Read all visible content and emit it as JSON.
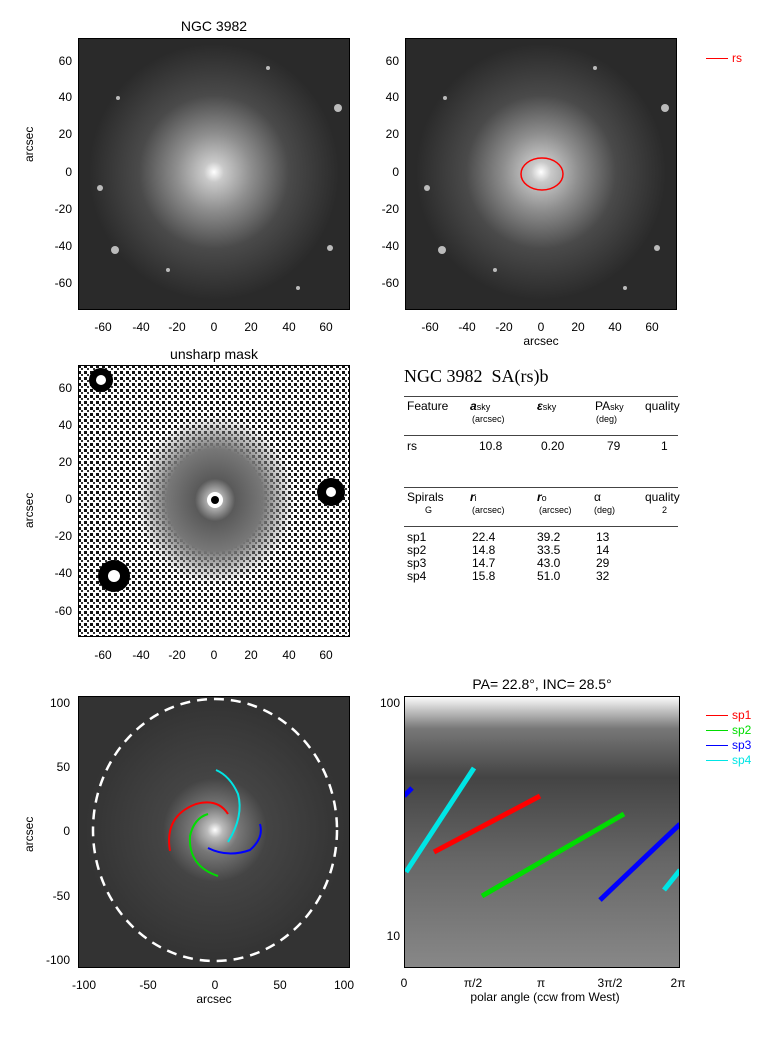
{
  "panel1": {
    "title": "NGC 3982",
    "ylabel": "arcsec",
    "yticks": [
      "60",
      "40",
      "20",
      "0",
      "-20",
      "-40",
      "-60"
    ],
    "xticks": [
      "-60",
      "-40",
      "-20",
      "0",
      "20",
      "40",
      "60"
    ]
  },
  "panel2": {
    "xlabel": "arcsec",
    "yticks": [
      "60",
      "40",
      "20",
      "0",
      "-20",
      "-40",
      "-60"
    ],
    "xticks": [
      "-60",
      "-40",
      "-20",
      "0",
      "20",
      "40",
      "60"
    ],
    "legend": {
      "label": "rs",
      "color": "#ff0000"
    }
  },
  "panel3": {
    "title": "unsharp mask",
    "ylabel": "arcsec",
    "yticks": [
      "60",
      "40",
      "20",
      "0",
      "-20",
      "-40",
      "-60"
    ],
    "xticks": [
      "-60",
      "-40",
      "-20",
      "0",
      "20",
      "40",
      "60"
    ]
  },
  "table": {
    "title": "NGC 3982  SA(rs)b",
    "ring_header": {
      "c1": "Feature",
      "c2": "a",
      "c2sub": "sky",
      "c2unit": "(arcsec)",
      "c3": "ε",
      "c3sub": "sky",
      "c4": "PA",
      "c4sub": "sky",
      "c4unit": "(deg)",
      "c5": "quality"
    },
    "rings": [
      {
        "feature": "rs",
        "a": "10.8",
        "e": "0.20",
        "pa": "79",
        "quality": "1"
      }
    ],
    "spiral_header": {
      "c1": "Spirals",
      "c1b": "G",
      "c2": "r",
      "c2sub": "i",
      "c2unit": "(arcsec)",
      "c3": "r",
      "c3sub": "o",
      "c3unit": "(arcsec)",
      "c4": "α",
      "c4unit": "(deg)",
      "c5": "quality",
      "c5b": "2"
    },
    "spirals": [
      {
        "name": "sp1",
        "ri": "22.4",
        "ro": "39.2",
        "alpha": "13"
      },
      {
        "name": "sp2",
        "ri": "14.8",
        "ro": "33.5",
        "alpha": "14"
      },
      {
        "name": "sp3",
        "ri": "14.7",
        "ro": "43.0",
        "alpha": "29"
      },
      {
        "name": "sp4",
        "ri": "15.8",
        "ro": "51.0",
        "alpha": "32"
      }
    ]
  },
  "panel5": {
    "ylabel": "arcsec",
    "xlabel": "arcsec",
    "yticks": [
      "100",
      "50",
      "0",
      "-50",
      "-100"
    ],
    "xticks": [
      "-100",
      "-50",
      "0",
      "50",
      "100"
    ]
  },
  "panel6": {
    "title": "PA=  22.8°, INC=  28.5°",
    "xlabel": "polar angle (ccw from West)",
    "yticks": [
      "100",
      "10"
    ],
    "xticks": [
      "0",
      "π/2",
      "π",
      "3π/2",
      "2π"
    ],
    "legend": [
      {
        "label": "sp1",
        "color": "#ff0000"
      },
      {
        "label": "sp2",
        "color": "#00dd00"
      },
      {
        "label": "sp3",
        "color": "#0000ff"
      },
      {
        "label": "sp4",
        "color": "#00e5e5"
      }
    ]
  }
}
